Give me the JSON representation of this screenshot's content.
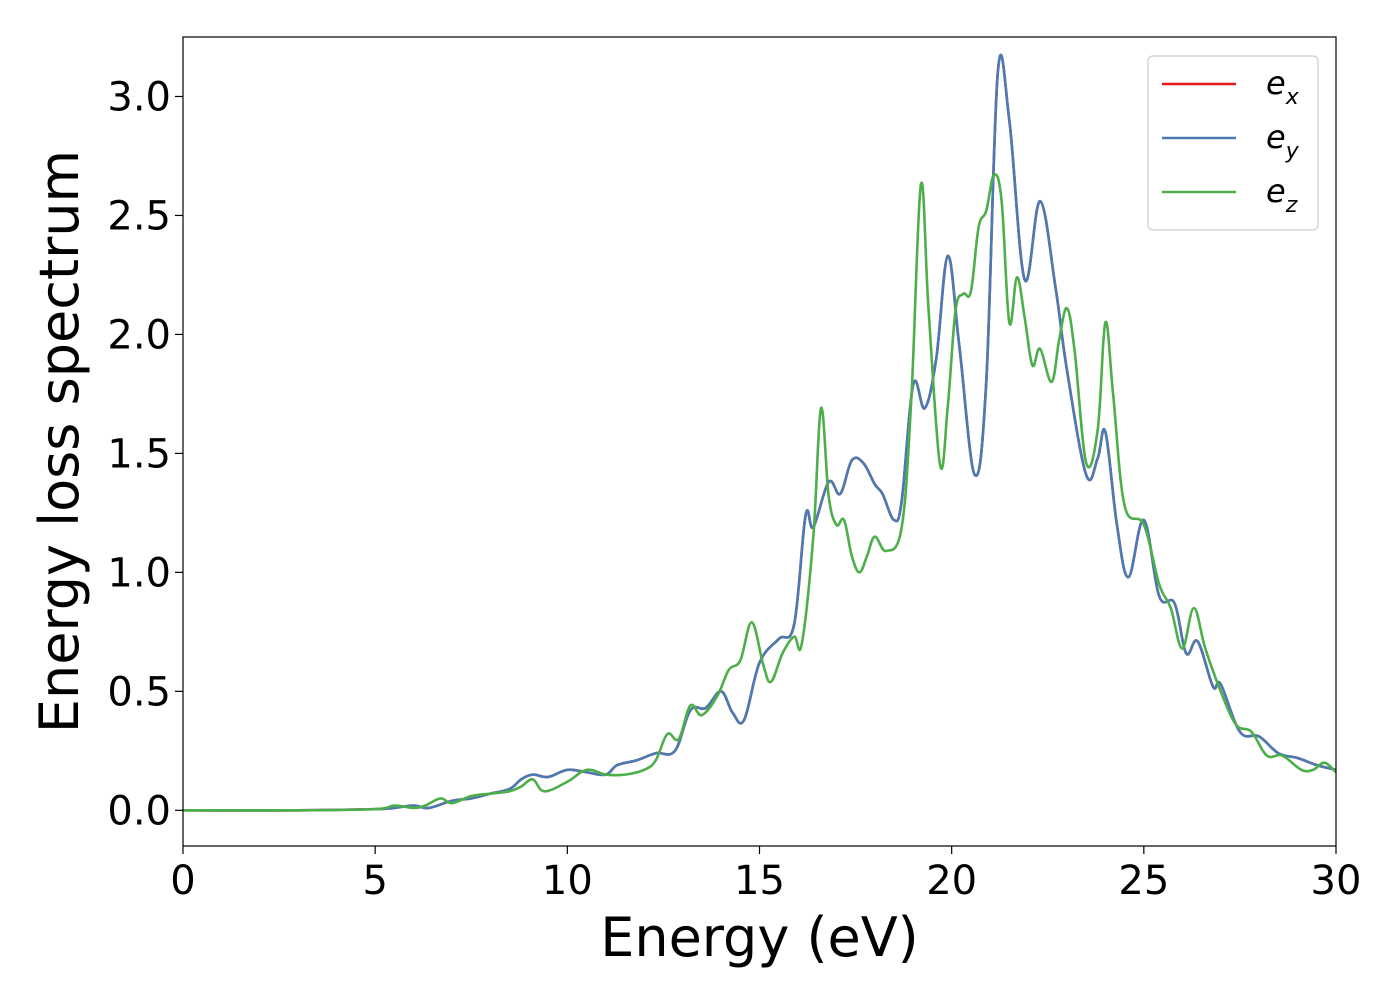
{
  "chart_data": {
    "type": "line",
    "title": "",
    "xlabel": "Energy (eV)",
    "ylabel": "Energy loss spectrum",
    "xlim": [
      0,
      30
    ],
    "ylim": [
      -0.15,
      3.25
    ],
    "xticks": [
      0,
      5,
      10,
      15,
      20,
      25,
      30
    ],
    "xtick_labels": [
      "0",
      "5",
      "10",
      "15",
      "20",
      "25",
      "30"
    ],
    "yticks": [
      0.0,
      0.5,
      1.0,
      1.5,
      2.0,
      2.5,
      3.0
    ],
    "ytick_labels": [
      "0.0",
      "0.5",
      "1.0",
      "1.5",
      "2.0",
      "2.5",
      "3.0"
    ],
    "grid": false,
    "legend_position": "top-right",
    "series": [
      {
        "name": "e_x",
        "legend_base": "e",
        "legend_sub": "x",
        "color": "#e41a1c",
        "points": [
          [
            0,
            0
          ],
          [
            3,
            0
          ],
          [
            5,
            0.005
          ],
          [
            5.5,
            0.01
          ],
          [
            6,
            0.02
          ],
          [
            6.4,
            0.01
          ],
          [
            7,
            0.04
          ],
          [
            7.5,
            0.05
          ],
          [
            8,
            0.07
          ],
          [
            8.5,
            0.09
          ],
          [
            8.8,
            0.13
          ],
          [
            9.1,
            0.15
          ],
          [
            9.5,
            0.14
          ],
          [
            10,
            0.17
          ],
          [
            10.5,
            0.16
          ],
          [
            11,
            0.15
          ],
          [
            11.3,
            0.19
          ],
          [
            11.8,
            0.21
          ],
          [
            12.3,
            0.24
          ],
          [
            12.8,
            0.25
          ],
          [
            13.2,
            0.42
          ],
          [
            13.6,
            0.43
          ],
          [
            14,
            0.5
          ],
          [
            14.3,
            0.41
          ],
          [
            14.6,
            0.38
          ],
          [
            15,
            0.62
          ],
          [
            15.5,
            0.72
          ],
          [
            15.9,
            0.78
          ],
          [
            16.2,
            1.24
          ],
          [
            16.4,
            1.19
          ],
          [
            16.8,
            1.38
          ],
          [
            17.1,
            1.33
          ],
          [
            17.4,
            1.47
          ],
          [
            17.7,
            1.46
          ],
          [
            18,
            1.37
          ],
          [
            18.2,
            1.33
          ],
          [
            18.5,
            1.22
          ],
          [
            18.7,
            1.3
          ],
          [
            19,
            1.79
          ],
          [
            19.3,
            1.69
          ],
          [
            19.6,
            1.9
          ],
          [
            19.9,
            2.33
          ],
          [
            20.2,
            1.95
          ],
          [
            20.6,
            1.41
          ],
          [
            20.9,
            1.8
          ],
          [
            21.2,
            3.1
          ],
          [
            21.5,
            2.9
          ],
          [
            21.9,
            2.23
          ],
          [
            22.3,
            2.56
          ],
          [
            22.7,
            2.2
          ],
          [
            23,
            1.85
          ],
          [
            23.5,
            1.41
          ],
          [
            23.8,
            1.48
          ],
          [
            24,
            1.59
          ],
          [
            24.3,
            1.2
          ],
          [
            24.6,
            0.98
          ],
          [
            25,
            1.22
          ],
          [
            25.4,
            0.9
          ],
          [
            25.8,
            0.87
          ],
          [
            26.1,
            0.66
          ],
          [
            26.4,
            0.71
          ],
          [
            26.8,
            0.52
          ],
          [
            27,
            0.53
          ],
          [
            27.5,
            0.33
          ],
          [
            28,
            0.31
          ],
          [
            28.5,
            0.24
          ],
          [
            29,
            0.22
          ],
          [
            29.5,
            0.19
          ],
          [
            30,
            0.17
          ]
        ]
      },
      {
        "name": "e_y",
        "legend_base": "e",
        "legend_sub": "y",
        "color": "#4a7bb5",
        "points": [
          [
            0,
            0
          ],
          [
            3,
            0
          ],
          [
            5,
            0.005
          ],
          [
            5.5,
            0.01
          ],
          [
            6,
            0.02
          ],
          [
            6.4,
            0.01
          ],
          [
            7,
            0.04
          ],
          [
            7.5,
            0.05
          ],
          [
            8,
            0.07
          ],
          [
            8.5,
            0.09
          ],
          [
            8.8,
            0.13
          ],
          [
            9.1,
            0.15
          ],
          [
            9.5,
            0.14
          ],
          [
            10,
            0.17
          ],
          [
            10.5,
            0.16
          ],
          [
            11,
            0.15
          ],
          [
            11.3,
            0.19
          ],
          [
            11.8,
            0.21
          ],
          [
            12.3,
            0.24
          ],
          [
            12.8,
            0.25
          ],
          [
            13.2,
            0.42
          ],
          [
            13.6,
            0.43
          ],
          [
            14,
            0.5
          ],
          [
            14.3,
            0.41
          ],
          [
            14.6,
            0.38
          ],
          [
            15,
            0.62
          ],
          [
            15.5,
            0.72
          ],
          [
            15.9,
            0.78
          ],
          [
            16.2,
            1.24
          ],
          [
            16.4,
            1.19
          ],
          [
            16.8,
            1.38
          ],
          [
            17.1,
            1.33
          ],
          [
            17.4,
            1.47
          ],
          [
            17.7,
            1.46
          ],
          [
            18,
            1.37
          ],
          [
            18.2,
            1.33
          ],
          [
            18.5,
            1.22
          ],
          [
            18.7,
            1.3
          ],
          [
            19,
            1.79
          ],
          [
            19.3,
            1.69
          ],
          [
            19.6,
            1.9
          ],
          [
            19.9,
            2.33
          ],
          [
            20.2,
            1.95
          ],
          [
            20.6,
            1.41
          ],
          [
            20.9,
            1.8
          ],
          [
            21.2,
            3.1
          ],
          [
            21.5,
            2.9
          ],
          [
            21.9,
            2.23
          ],
          [
            22.3,
            2.56
          ],
          [
            22.7,
            2.2
          ],
          [
            23,
            1.85
          ],
          [
            23.5,
            1.41
          ],
          [
            23.8,
            1.48
          ],
          [
            24,
            1.59
          ],
          [
            24.3,
            1.2
          ],
          [
            24.6,
            0.98
          ],
          [
            25,
            1.22
          ],
          [
            25.4,
            0.9
          ],
          [
            25.8,
            0.87
          ],
          [
            26.1,
            0.66
          ],
          [
            26.4,
            0.71
          ],
          [
            26.8,
            0.52
          ],
          [
            27,
            0.53
          ],
          [
            27.5,
            0.33
          ],
          [
            28,
            0.31
          ],
          [
            28.5,
            0.24
          ],
          [
            29,
            0.22
          ],
          [
            29.5,
            0.19
          ],
          [
            30,
            0.17
          ]
        ]
      },
      {
        "name": "e_z",
        "legend_base": "e",
        "legend_sub": "z",
        "color": "#4daf4a",
        "points": [
          [
            0,
            0
          ],
          [
            3,
            0
          ],
          [
            5,
            0.005
          ],
          [
            5.5,
            0.02
          ],
          [
            6,
            0.01
          ],
          [
            6.3,
            0.02
          ],
          [
            6.7,
            0.05
          ],
          [
            7,
            0.03
          ],
          [
            7.5,
            0.06
          ],
          [
            8,
            0.07
          ],
          [
            8.5,
            0.08
          ],
          [
            8.8,
            0.1
          ],
          [
            9.1,
            0.13
          ],
          [
            9.4,
            0.08
          ],
          [
            10,
            0.12
          ],
          [
            10.5,
            0.17
          ],
          [
            11,
            0.15
          ],
          [
            11.5,
            0.15
          ],
          [
            12,
            0.17
          ],
          [
            12.3,
            0.21
          ],
          [
            12.6,
            0.32
          ],
          [
            12.9,
            0.3
          ],
          [
            13.2,
            0.44
          ],
          [
            13.5,
            0.4
          ],
          [
            13.9,
            0.48
          ],
          [
            14.2,
            0.59
          ],
          [
            14.5,
            0.63
          ],
          [
            14.8,
            0.79
          ],
          [
            15.1,
            0.61
          ],
          [
            15.3,
            0.54
          ],
          [
            15.6,
            0.66
          ],
          [
            15.9,
            0.73
          ],
          [
            16.1,
            0.7
          ],
          [
            16.4,
            1.15
          ],
          [
            16.6,
            1.69
          ],
          [
            16.8,
            1.32
          ],
          [
            17,
            1.2
          ],
          [
            17.2,
            1.22
          ],
          [
            17.4,
            1.07
          ],
          [
            17.6,
            1.0
          ],
          [
            17.8,
            1.07
          ],
          [
            18,
            1.15
          ],
          [
            18.3,
            1.09
          ],
          [
            18.7,
            1.19
          ],
          [
            18.95,
            1.73
          ],
          [
            19.2,
            2.63
          ],
          [
            19.4,
            2.1
          ],
          [
            19.7,
            1.45
          ],
          [
            19.9,
            1.7
          ],
          [
            20.1,
            2.1
          ],
          [
            20.3,
            2.17
          ],
          [
            20.5,
            2.18
          ],
          [
            20.7,
            2.45
          ],
          [
            20.9,
            2.52
          ],
          [
            21.1,
            2.67
          ],
          [
            21.3,
            2.56
          ],
          [
            21.5,
            2.05
          ],
          [
            21.7,
            2.24
          ],
          [
            21.9,
            2.07
          ],
          [
            22.1,
            1.87
          ],
          [
            22.3,
            1.94
          ],
          [
            22.6,
            1.8
          ],
          [
            22.8,
            1.98
          ],
          [
            23,
            2.11
          ],
          [
            23.2,
            1.93
          ],
          [
            23.5,
            1.46
          ],
          [
            23.8,
            1.6
          ],
          [
            24,
            2.05
          ],
          [
            24.2,
            1.75
          ],
          [
            24.5,
            1.28
          ],
          [
            25,
            1.2
          ],
          [
            25.4,
            0.95
          ],
          [
            25.7,
            0.85
          ],
          [
            26,
            0.68
          ],
          [
            26.3,
            0.85
          ],
          [
            26.6,
            0.68
          ],
          [
            27,
            0.5
          ],
          [
            27.4,
            0.36
          ],
          [
            27.8,
            0.33
          ],
          [
            28.2,
            0.23
          ],
          [
            28.6,
            0.23
          ],
          [
            29.1,
            0.17
          ],
          [
            29.4,
            0.17
          ],
          [
            29.7,
            0.2
          ],
          [
            30,
            0.16
          ]
        ]
      }
    ]
  }
}
